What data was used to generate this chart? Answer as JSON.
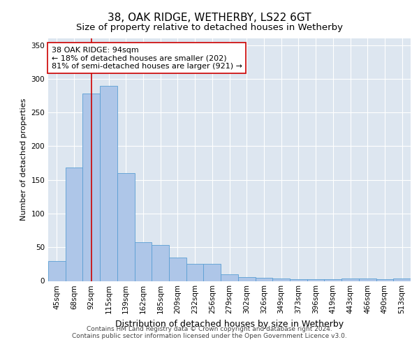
{
  "title1": "38, OAK RIDGE, WETHERBY, LS22 6GT",
  "title2": "Size of property relative to detached houses in Wetherby",
  "xlabel": "Distribution of detached houses by size in Wetherby",
  "ylabel": "Number of detached properties",
  "bar_labels": [
    "45sqm",
    "68sqm",
    "92sqm",
    "115sqm",
    "139sqm",
    "162sqm",
    "185sqm",
    "209sqm",
    "232sqm",
    "256sqm",
    "279sqm",
    "302sqm",
    "326sqm",
    "349sqm",
    "373sqm",
    "396sqm",
    "419sqm",
    "443sqm",
    "466sqm",
    "490sqm",
    "513sqm"
  ],
  "bar_values": [
    30,
    168,
    278,
    290,
    160,
    58,
    53,
    35,
    25,
    25,
    10,
    6,
    5,
    4,
    3,
    3,
    3,
    4,
    4,
    3,
    4
  ],
  "bar_color": "#aec6e8",
  "bar_edgecolor": "#5a9fd4",
  "vline_x": 2,
  "vline_color": "#cc0000",
  "annotation_text": "38 OAK RIDGE: 94sqm\n← 18% of detached houses are smaller (202)\n81% of semi-detached houses are larger (921) →",
  "annotation_box_color": "#ffffff",
  "annotation_box_edgecolor": "#cc0000",
  "ylim": [
    0,
    360
  ],
  "yticks": [
    0,
    50,
    100,
    150,
    200,
    250,
    300,
    350
  ],
  "background_color": "#dde6f0",
  "footer1": "Contains HM Land Registry data © Crown copyright and database right 2024.",
  "footer2": "Contains public sector information licensed under the Open Government Licence v3.0.",
  "title1_fontsize": 11,
  "title2_fontsize": 9.5,
  "xlabel_fontsize": 9,
  "ylabel_fontsize": 8,
  "tick_fontsize": 7.5,
  "annotation_fontsize": 8,
  "footer_fontsize": 6.5
}
